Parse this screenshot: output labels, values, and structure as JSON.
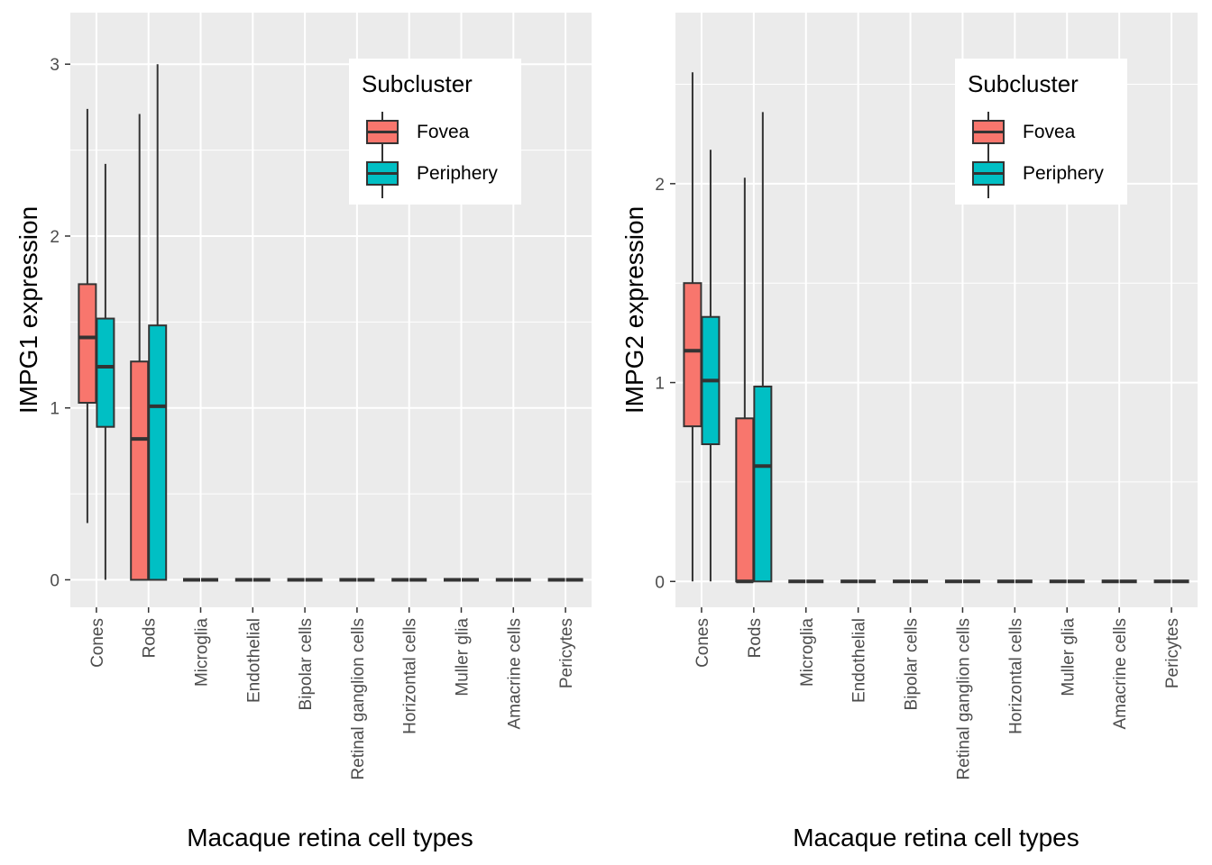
{
  "legend": {
    "title": "Subcluster",
    "items": [
      {
        "label": "Fovea",
        "color": "#F8766D"
      },
      {
        "label": "Periphery",
        "color": "#00BFC4"
      }
    ]
  },
  "chart_data": [
    {
      "type": "boxplot",
      "xlabel": "Macaque retina cell types",
      "ylabel": "IMPG1 expression",
      "ylim": [
        -0.16,
        3.3
      ],
      "yticks": [
        0,
        1,
        2,
        3
      ],
      "categories": [
        "Cones",
        "Rods",
        "Microglia",
        "Endothelial",
        "Bipolar cells",
        "Retinal ganglion cells",
        "Horizontal cells",
        "Muller glia",
        "Amacrine cells",
        "Pericytes"
      ],
      "series": [
        {
          "name": "Fovea",
          "color": "#F8766D",
          "boxes": [
            {
              "min": 0.33,
              "q1": 1.03,
              "median": 1.41,
              "q3": 1.72,
              "max": 2.74
            },
            {
              "min": 0,
              "q1": 0,
              "median": 0.82,
              "q3": 1.27,
              "max": 2.71
            },
            {
              "min": 0,
              "q1": 0,
              "median": 0,
              "q3": 0,
              "max": 0
            },
            {
              "min": 0,
              "q1": 0,
              "median": 0,
              "q3": 0,
              "max": 0
            },
            {
              "min": 0,
              "q1": 0,
              "median": 0,
              "q3": 0,
              "max": 0
            },
            {
              "min": 0,
              "q1": 0,
              "median": 0,
              "q3": 0,
              "max": 0
            },
            {
              "min": 0,
              "q1": 0,
              "median": 0,
              "q3": 0,
              "max": 0
            },
            {
              "min": 0,
              "q1": 0,
              "median": 0,
              "q3": 0,
              "max": 0
            },
            {
              "min": 0,
              "q1": 0,
              "median": 0,
              "q3": 0,
              "max": 0
            },
            {
              "min": 0,
              "q1": 0,
              "median": 0,
              "q3": 0,
              "max": 0
            }
          ]
        },
        {
          "name": "Periphery",
          "color": "#00BFC4",
          "boxes": [
            {
              "min": 0,
              "q1": 0.89,
              "median": 1.24,
              "q3": 1.52,
              "max": 2.42
            },
            {
              "min": 0,
              "q1": 0,
              "median": 1.01,
              "q3": 1.48,
              "max": 3.0
            },
            {
              "min": 0,
              "q1": 0,
              "median": 0,
              "q3": 0,
              "max": 0
            },
            {
              "min": 0,
              "q1": 0,
              "median": 0,
              "q3": 0,
              "max": 0
            },
            {
              "min": 0,
              "q1": 0,
              "median": 0,
              "q3": 0,
              "max": 0
            },
            {
              "min": 0,
              "q1": 0,
              "median": 0,
              "q3": 0,
              "max": 0
            },
            {
              "min": 0,
              "q1": 0,
              "median": 0,
              "q3": 0,
              "max": 0
            },
            {
              "min": 0,
              "q1": 0,
              "median": 0,
              "q3": 0,
              "max": 0
            },
            {
              "min": 0,
              "q1": 0,
              "median": 0,
              "q3": 0,
              "max": 0
            },
            {
              "min": 0,
              "q1": 0,
              "median": 0,
              "q3": 0,
              "max": 0
            }
          ]
        }
      ],
      "grid": true,
      "legend_position": "top-right"
    },
    {
      "type": "boxplot",
      "xlabel": "Macaque retina cell types",
      "ylabel": "IMPG2 expression",
      "ylim": [
        -0.13,
        2.86
      ],
      "yticks": [
        0,
        1,
        2
      ],
      "categories": [
        "Cones",
        "Rods",
        "Microglia",
        "Endothelial",
        "Bipolar cells",
        "Retinal ganglion cells",
        "Horizontal cells",
        "Muller glia",
        "Amacrine cells",
        "Pericytes"
      ],
      "series": [
        {
          "name": "Fovea",
          "color": "#F8766D",
          "boxes": [
            {
              "min": 0,
              "q1": 0.78,
              "median": 1.16,
              "q3": 1.5,
              "max": 2.56
            },
            {
              "min": 0,
              "q1": 0,
              "median": 0,
              "q3": 0.82,
              "max": 2.03
            },
            {
              "min": 0,
              "q1": 0,
              "median": 0,
              "q3": 0,
              "max": 0
            },
            {
              "min": 0,
              "q1": 0,
              "median": 0,
              "q3": 0,
              "max": 0
            },
            {
              "min": 0,
              "q1": 0,
              "median": 0,
              "q3": 0,
              "max": 0
            },
            {
              "min": 0,
              "q1": 0,
              "median": 0,
              "q3": 0,
              "max": 0
            },
            {
              "min": 0,
              "q1": 0,
              "median": 0,
              "q3": 0,
              "max": 0
            },
            {
              "min": 0,
              "q1": 0,
              "median": 0,
              "q3": 0,
              "max": 0
            },
            {
              "min": 0,
              "q1": 0,
              "median": 0,
              "q3": 0,
              "max": 0
            },
            {
              "min": 0,
              "q1": 0,
              "median": 0,
              "q3": 0,
              "max": 0
            }
          ]
        },
        {
          "name": "Periphery",
          "color": "#00BFC4",
          "boxes": [
            {
              "min": 0,
              "q1": 0.69,
              "median": 1.01,
              "q3": 1.33,
              "max": 2.17
            },
            {
              "min": 0,
              "q1": 0,
              "median": 0.58,
              "q3": 0.98,
              "max": 2.36
            },
            {
              "min": 0,
              "q1": 0,
              "median": 0,
              "q3": 0,
              "max": 0
            },
            {
              "min": 0,
              "q1": 0,
              "median": 0,
              "q3": 0,
              "max": 0
            },
            {
              "min": 0,
              "q1": 0,
              "median": 0,
              "q3": 0,
              "max": 0
            },
            {
              "min": 0,
              "q1": 0,
              "median": 0,
              "q3": 0,
              "max": 0
            },
            {
              "min": 0,
              "q1": 0,
              "median": 0,
              "q3": 0,
              "max": 0
            },
            {
              "min": 0,
              "q1": 0,
              "median": 0,
              "q3": 0,
              "max": 0
            },
            {
              "min": 0,
              "q1": 0,
              "median": 0,
              "q3": 0,
              "max": 0
            },
            {
              "min": 0,
              "q1": 0,
              "median": 0,
              "q3": 0,
              "max": 0
            }
          ]
        }
      ],
      "grid": true,
      "legend_position": "top-right"
    }
  ]
}
